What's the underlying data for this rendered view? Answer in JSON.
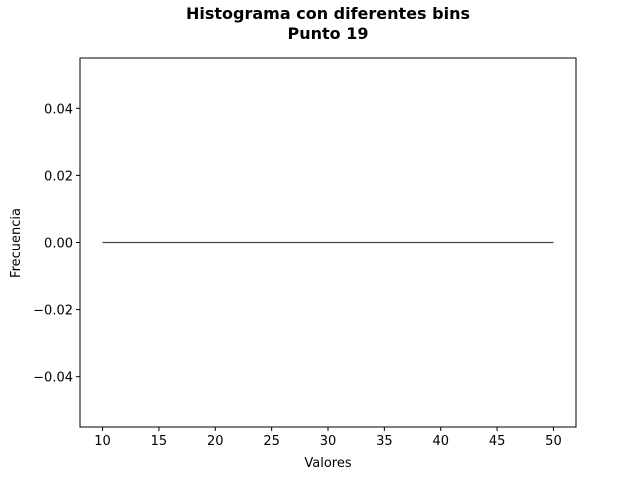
{
  "chart_data": {
    "type": "bar",
    "title": [
      "Histograma con diferentes bins",
      "Punto 19"
    ],
    "xlabel": "Valores",
    "ylabel": "Frecuencia",
    "xlim": [
      8,
      52
    ],
    "ylim": [
      -0.055,
      0.055
    ],
    "x_ticks": [
      10,
      15,
      20,
      25,
      30,
      35,
      40,
      45,
      50
    ],
    "x_tick_labels": [
      "10",
      "15",
      "20",
      "25",
      "30",
      "35",
      "40",
      "45",
      "50"
    ],
    "y_ticks": [
      0.04,
      0.02,
      0.0,
      -0.02,
      -0.04
    ],
    "y_tick_labels": [
      "0.04",
      "0.02",
      "0.00",
      "−0.02",
      "−0.04"
    ],
    "bins": {
      "edges": [
        10,
        50
      ],
      "values": [
        0
      ]
    },
    "line_color": "#444444",
    "grid": false
  }
}
